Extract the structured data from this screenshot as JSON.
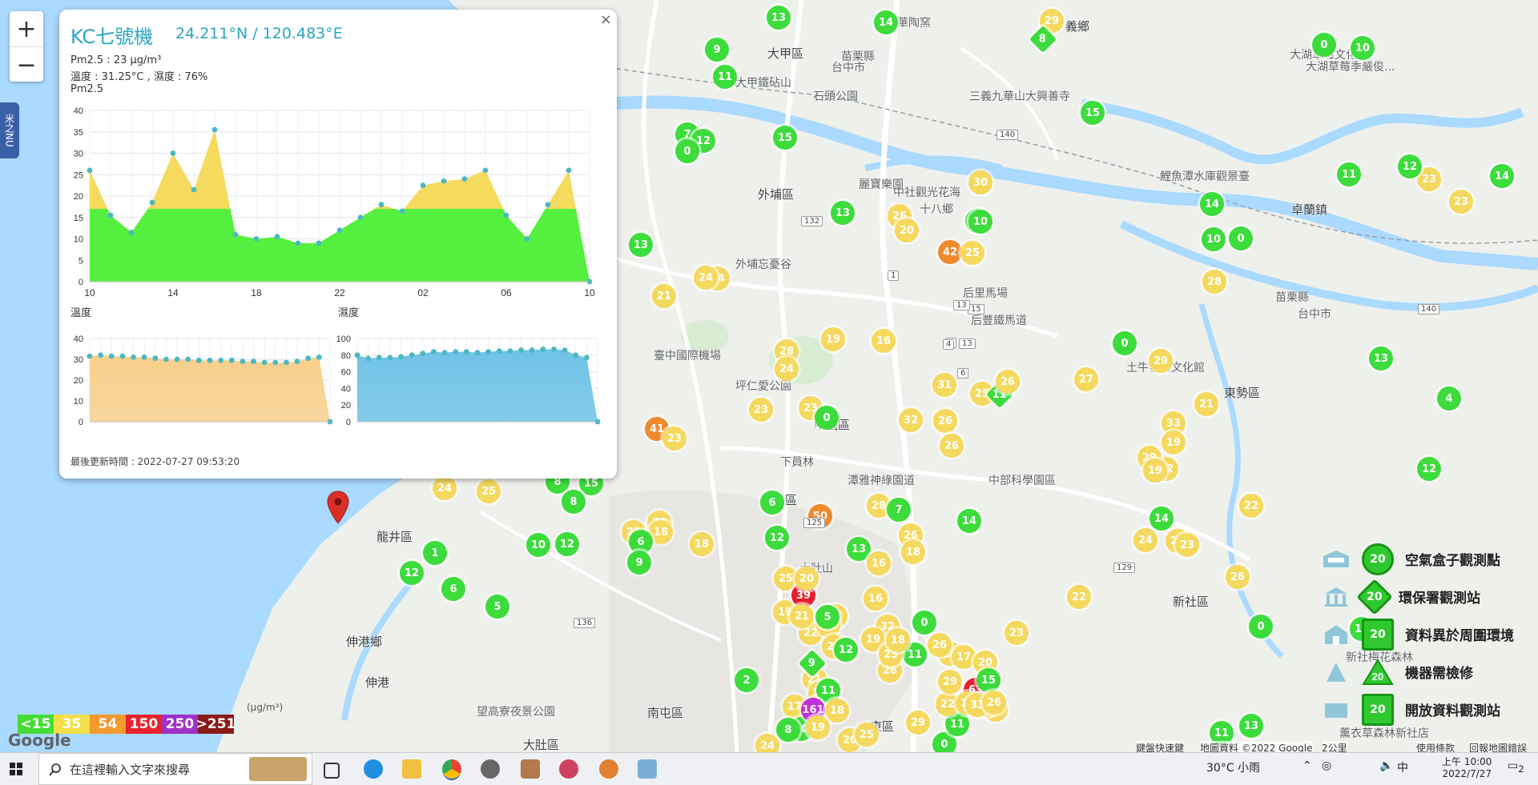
{
  "map": {
    "labels": [
      {
        "t": "大甲區",
        "dark": true
      },
      {
        "t": "大湖草莓文化館"
      },
      {
        "t": "大湖草莓季嚴俊..."
      },
      {
        "t": "義鄉",
        "dark": true
      },
      {
        "t": "華陶窯"
      },
      {
        "t": "苗栗縣"
      },
      {
        "t": "台中市"
      },
      {
        "t": "大甲鐵砧山"
      },
      {
        "t": "石頭公園"
      },
      {
        "t": "三義九華山大興善寺"
      },
      {
        "t": "外埔區",
        "dark": true
      },
      {
        "t": "麗寶樂園"
      },
      {
        "t": "中社觀光花海"
      },
      {
        "t": "鯉魚潭水庫觀景臺"
      },
      {
        "t": "卓蘭鎮",
        "dark": true
      },
      {
        "t": "外埔忘憂谷"
      },
      {
        "t": "后里馬場"
      },
      {
        "t": "后豐鐵馬道"
      },
      {
        "t": "臺中國際機場"
      },
      {
        "t": "坪仁愛公園"
      },
      {
        "t": "中國區",
        "dark": true
      },
      {
        "t": "潭雅神綠園道"
      },
      {
        "t": "大雅區",
        "dark": true
      },
      {
        "t": "中部科學園區"
      },
      {
        "t": "新社區",
        "dark": true
      },
      {
        "t": "龍井區",
        "dark": true
      },
      {
        "t": "伸港鄉",
        "dark": true
      },
      {
        "t": "伸港",
        "dark": true
      },
      {
        "t": "望高寮夜景公園"
      },
      {
        "t": "大肚區",
        "dark": true
      },
      {
        "t": "南屯區",
        "dark": true
      },
      {
        "t": "東區",
        "dark": true
      },
      {
        "t": "新社梅花森林"
      },
      {
        "t": "薰衣草森林新社店"
      },
      {
        "t": "土牛客家文化館"
      },
      {
        "t": "苗栗縣"
      },
      {
        "t": "台中市"
      },
      {
        "t": "東勢區",
        "dark": true
      },
      {
        "t": "十八鄉"
      },
      {
        "t": "下員林"
      },
      {
        "t": "大肚山"
      }
    ],
    "markers": [
      {
        "v": "13",
        "c": "green"
      },
      {
        "v": "14",
        "c": "green"
      },
      {
        "v": "29",
        "c": "yellow"
      },
      {
        "v": "8",
        "c": "green",
        "d": true
      },
      {
        "v": "0",
        "c": "green"
      },
      {
        "v": "10",
        "c": "green"
      },
      {
        "v": "9",
        "c": "green"
      },
      {
        "v": "11",
        "c": "green"
      },
      {
        "v": "15",
        "c": "green"
      },
      {
        "v": "7",
        "c": "green"
      },
      {
        "v": "12",
        "c": "green"
      },
      {
        "v": "0",
        "c": "green"
      },
      {
        "v": "15",
        "c": "green"
      },
      {
        "v": "11",
        "c": "green"
      },
      {
        "v": "14",
        "c": "green"
      },
      {
        "v": "10",
        "c": "green"
      },
      {
        "v": "0",
        "c": "green"
      },
      {
        "v": "13",
        "c": "green"
      },
      {
        "v": "23",
        "c": "yellow"
      },
      {
        "v": "13",
        "c": "green"
      },
      {
        "v": "26",
        "c": "yellow"
      },
      {
        "v": "20",
        "c": "yellow"
      },
      {
        "v": "30",
        "c": "yellow"
      },
      {
        "v": "15",
        "c": "green"
      },
      {
        "v": "42",
        "c": "orange"
      },
      {
        "v": "25",
        "c": "yellow"
      },
      {
        "v": "10",
        "c": "green"
      },
      {
        "v": "21",
        "c": "yellow"
      },
      {
        "v": "24",
        "c": "yellow"
      },
      {
        "v": "24",
        "c": "yellow"
      },
      {
        "v": "19",
        "c": "yellow"
      },
      {
        "v": "16",
        "c": "yellow"
      },
      {
        "v": "0",
        "c": "green"
      },
      {
        "v": "29",
        "c": "yellow"
      },
      {
        "v": "27",
        "c": "yellow"
      },
      {
        "v": "13",
        "c": "green"
      },
      {
        "v": "28",
        "c": "yellow"
      },
      {
        "v": "24",
        "c": "yellow"
      },
      {
        "v": "31",
        "c": "yellow"
      },
      {
        "v": "25",
        "c": "yellow"
      },
      {
        "v": "11",
        "c": "green",
        "d": true
      },
      {
        "v": "26",
        "c": "yellow"
      },
      {
        "v": "23",
        "c": "yellow"
      },
      {
        "v": "23",
        "c": "yellow"
      },
      {
        "v": "0",
        "c": "green"
      },
      {
        "v": "32",
        "c": "yellow"
      },
      {
        "v": "26",
        "c": "yellow"
      },
      {
        "v": "26",
        "c": "yellow"
      },
      {
        "v": "33",
        "c": "yellow"
      },
      {
        "v": "19",
        "c": "yellow"
      },
      {
        "v": "32",
        "c": "yellow"
      },
      {
        "v": "29",
        "c": "yellow"
      },
      {
        "v": "41",
        "c": "orange"
      },
      {
        "v": "23",
        "c": "yellow"
      },
      {
        "v": "24",
        "c": "yellow"
      },
      {
        "v": "25",
        "c": "yellow"
      },
      {
        "v": "15",
        "c": "green"
      },
      {
        "v": "8",
        "c": "green"
      },
      {
        "v": "8",
        "c": "green"
      },
      {
        "v": "6",
        "c": "green"
      },
      {
        "v": "50",
        "c": "orange"
      },
      {
        "v": "28",
        "c": "yellow"
      },
      {
        "v": "7",
        "c": "green"
      },
      {
        "v": "14",
        "c": "green"
      },
      {
        "v": "26",
        "c": "yellow"
      },
      {
        "v": "18",
        "c": "yellow"
      },
      {
        "v": "22",
        "c": "yellow"
      },
      {
        "v": "20",
        "c": "yellow"
      },
      {
        "v": "22",
        "c": "yellow"
      },
      {
        "v": "18",
        "c": "yellow"
      },
      {
        "v": "10",
        "c": "green"
      },
      {
        "v": "12",
        "c": "green"
      },
      {
        "v": "1",
        "c": "green"
      },
      {
        "v": "12",
        "c": "green"
      },
      {
        "v": "6",
        "c": "green"
      },
      {
        "v": "5",
        "c": "green"
      },
      {
        "v": "6",
        "c": "green"
      },
      {
        "v": "9",
        "c": "green"
      },
      {
        "v": "18",
        "c": "yellow"
      },
      {
        "v": "12",
        "c": "green"
      },
      {
        "v": "25",
        "c": "yellow"
      },
      {
        "v": "19",
        "c": "yellow"
      },
      {
        "v": "39",
        "c": "red"
      },
      {
        "v": "16",
        "c": "yellow"
      },
      {
        "v": "13",
        "c": "green"
      },
      {
        "v": "16",
        "c": "yellow"
      },
      {
        "v": "20",
        "c": "yellow"
      },
      {
        "v": "22",
        "c": "yellow"
      },
      {
        "v": "23",
        "c": "yellow"
      },
      {
        "v": "32",
        "c": "yellow"
      },
      {
        "v": "21",
        "c": "yellow"
      },
      {
        "v": "19",
        "c": "yellow"
      },
      {
        "v": "11",
        "c": "green"
      },
      {
        "v": "26",
        "c": "yellow"
      },
      {
        "v": "0",
        "c": "green"
      },
      {
        "v": "23",
        "c": "yellow"
      },
      {
        "v": "28",
        "c": "yellow"
      },
      {
        "v": "21",
        "c": "yellow"
      },
      {
        "v": "5",
        "c": "green"
      },
      {
        "v": "26",
        "c": "yellow"
      },
      {
        "v": "18",
        "c": "yellow"
      },
      {
        "v": "12",
        "c": "green"
      },
      {
        "v": "21",
        "c": "yellow"
      },
      {
        "v": "9",
        "c": "green",
        "d": true
      },
      {
        "v": "2",
        "c": "green"
      },
      {
        "v": "20",
        "c": "yellow"
      },
      {
        "v": "17",
        "c": "yellow"
      },
      {
        "v": "10",
        "c": "green"
      },
      {
        "v": "11",
        "c": "green"
      },
      {
        "v": "161",
        "c": "purple"
      },
      {
        "v": "18",
        "c": "yellow"
      },
      {
        "v": "24",
        "c": "yellow"
      },
      {
        "v": "8",
        "c": "green"
      },
      {
        "v": "19",
        "c": "yellow"
      },
      {
        "v": "20",
        "c": "yellow"
      },
      {
        "v": "25",
        "c": "yellow"
      },
      {
        "v": "29",
        "c": "yellow"
      },
      {
        "v": "0",
        "c": "green"
      },
      {
        "v": "11",
        "c": "green"
      },
      {
        "v": "63",
        "c": "red"
      },
      {
        "v": "22",
        "c": "yellow"
      },
      {
        "v": "27",
        "c": "yellow"
      },
      {
        "v": "17",
        "c": "yellow"
      },
      {
        "v": "18",
        "c": "yellow"
      },
      {
        "v": "26",
        "c": "yellow"
      },
      {
        "v": "20",
        "c": "yellow"
      },
      {
        "v": "15",
        "c": "green"
      },
      {
        "v": "25",
        "c": "yellow"
      },
      {
        "v": "29",
        "c": "yellow"
      },
      {
        "v": "33",
        "c": "yellow"
      },
      {
        "v": "26",
        "c": "yellow"
      },
      {
        "v": "23",
        "c": "yellow"
      },
      {
        "v": "11",
        "c": "green"
      },
      {
        "v": "13",
        "c": "green"
      },
      {
        "v": "0",
        "c": "green"
      },
      {
        "v": "10",
        "c": "green"
      },
      {
        "v": "12",
        "c": "green"
      },
      {
        "v": "4",
        "c": "green"
      },
      {
        "v": "23",
        "c": "yellow"
      },
      {
        "v": "14",
        "c": "green"
      },
      {
        "v": "12",
        "c": "green"
      },
      {
        "v": "28",
        "c": "yellow"
      },
      {
        "v": "21",
        "c": "yellow"
      },
      {
        "v": "19",
        "c": "yellow"
      },
      {
        "v": "14",
        "c": "green"
      },
      {
        "v": "27",
        "c": "yellow"
      },
      {
        "v": "24",
        "c": "yellow"
      },
      {
        "v": "22",
        "c": "yellow"
      },
      {
        "v": "23",
        "c": "yellow"
      },
      {
        "v": "26",
        "c": "yellow"
      }
    ],
    "road_shields": [
      "132",
      "140",
      "140",
      "125",
      "129",
      "136",
      "10",
      "6",
      "1",
      "3",
      "15",
      "4",
      "13",
      "13"
    ]
  },
  "popup": {
    "title": "KC七號機",
    "coords": "24.211°N / 120.483°E",
    "pm_line": "Pm2.5 : 23 μg/m³",
    "temp_hum_line": "溫度 : 31.25°C , 濕度 : 76%",
    "chart_label": "Pm2.5",
    "temp_label": "溫度",
    "hum_label": "濕度",
    "updated": "最後更新時間 : 2022-07-27 09:53:20",
    "close": "×"
  },
  "chart_data": [
    {
      "type": "area",
      "title": "Pm2.5",
      "x": [
        "10",
        "",
        "",
        "",
        "14",
        "",
        "",
        "",
        "18",
        "",
        "",
        "",
        "22",
        "",
        "",
        "",
        "02",
        "",
        "",
        "",
        "06",
        "",
        "",
        "",
        "10"
      ],
      "xticks": [
        "10",
        "14",
        "18",
        "22",
        "02",
        "06",
        "10"
      ],
      "values": [
        26,
        15.5,
        11.5,
        18.5,
        30,
        21.5,
        35.5,
        11,
        10,
        10.5,
        9,
        9,
        12,
        15,
        18,
        16.5,
        22.5,
        23.5,
        24,
        26,
        15.5,
        10,
        18,
        26,
        0
      ],
      "ylim": [
        0,
        40
      ],
      "yticks": [
        0,
        5,
        10,
        15,
        20,
        25,
        30,
        35,
        40
      ],
      "colors": {
        "below_threshold": "#55f03f",
        "above_threshold": "#f5da5e",
        "points": "#4cb8c4"
      },
      "threshold": 17
    },
    {
      "type": "area",
      "title": "溫度",
      "values": [
        31.5,
        32,
        31.5,
        31.5,
        31,
        31,
        30.5,
        30,
        30,
        30,
        29.5,
        29.5,
        29.5,
        29.5,
        29,
        29,
        28.5,
        28.5,
        28.5,
        29,
        30.5,
        31,
        0
      ],
      "ylim": [
        0,
        40
      ],
      "yticks": [
        0,
        10,
        20,
        30,
        40
      ],
      "color": "#f7cf8c"
    },
    {
      "type": "area",
      "title": "濕度",
      "values": [
        80,
        76,
        77,
        77,
        78,
        80,
        82,
        84,
        83,
        84,
        84,
        83,
        84,
        85,
        85,
        86,
        86,
        87,
        87,
        86,
        80,
        77,
        0
      ],
      "ylim": [
        0,
        100
      ],
      "yticks": [
        0,
        20,
        40,
        60,
        80,
        100
      ],
      "color": "#6fc2e6"
    }
  ],
  "scale": [
    {
      "label": "<15",
      "color": "#44dd33"
    },
    {
      "label": "35",
      "color": "#f2e04a"
    },
    {
      "label": "54",
      "color": "#f29a2e"
    },
    {
      "label": "150",
      "color": "#e8222e"
    },
    {
      "label": "250",
      "color": "#a030c8"
    },
    {
      "label": ">251",
      "color": "#8b1a1a"
    }
  ],
  "scale_unit": "(μg/m³)",
  "legend": [
    {
      "label": "空氣盒子觀測點",
      "icon": "sensor-box-icon",
      "shape": "circle",
      "value": "20"
    },
    {
      "label": "環保署觀測站",
      "icon": "government-building-icon",
      "shape": "diamond",
      "value": "20"
    },
    {
      "label": "資料異於周圍環境",
      "icon": "house-icon",
      "shape": "square",
      "value": "20"
    },
    {
      "label": "機器需檢修",
      "icon": "maintenance-icon",
      "shape": "triangle",
      "value": "20"
    },
    {
      "label": "開放資料觀測站",
      "icon": "open-data-icon",
      "shape": "square",
      "value": "20"
    }
  ],
  "attribution": {
    "shortcuts": "鍵盤快速鍵",
    "data": "地圖資料 ©2022 Google",
    "scale": "2公里",
    "terms": "使用條款",
    "report": "回報地圖錯誤",
    "logo": "Google"
  },
  "side_tab": "米之NU",
  "zoom": {
    "in": "+",
    "out": "−"
  },
  "taskbar": {
    "search_placeholder": "在這裡輸入文字來搜尋",
    "weather": "30°C 小雨",
    "ime": "中",
    "time": "上午 10:00",
    "date": "2022/7/27",
    "notif": "2"
  }
}
